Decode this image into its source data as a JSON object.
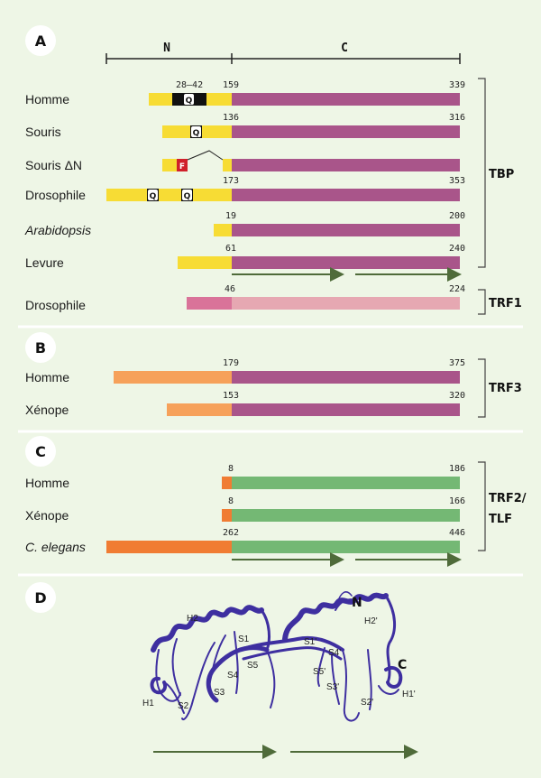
{
  "colors": {
    "yellow": "#f7dc34",
    "purple": "#a9558a",
    "pink": "#d97399",
    "lightpink": "#e6a8b2",
    "orange_light": "#f6a15a",
    "orange": "#f07c33",
    "green": "#74b874",
    "arrow": "#4f6b3a",
    "ribbon": "#3e2fa0"
  },
  "panelA": {
    "letter": "A",
    "n_label": "N",
    "c_label": "C",
    "rows": [
      {
        "name": "Homme",
        "start": "159",
        "end": "339",
        "motif": "28–42"
      },
      {
        "name": "Souris",
        "start": "136",
        "end": "316"
      },
      {
        "name": "Souris ΔN",
        "start": "",
        "end": "",
        "flag": "F"
      },
      {
        "name": "Drosophile",
        "start": "173",
        "end": "353"
      },
      {
        "name": "Arabidopsis",
        "start": "19",
        "end": "200"
      },
      {
        "name": "Levure",
        "start": "61",
        "end": "240"
      }
    ],
    "group": "TBP",
    "trf1_row": {
      "name": "Drosophile",
      "start": "46",
      "end": "224"
    },
    "trf1_group": "TRF1",
    "q_glyph": "Q"
  },
  "panelB": {
    "letter": "B",
    "rows": [
      {
        "name": "Homme",
        "start": "179",
        "end": "375"
      },
      {
        "name": "Xénope",
        "start": "153",
        "end": "320"
      }
    ],
    "group": "TRF3"
  },
  "panelC": {
    "letter": "C",
    "rows": [
      {
        "name": "Homme",
        "start": "8",
        "end": "186"
      },
      {
        "name": "Xénope",
        "start": "8",
        "end": "166"
      },
      {
        "name": "C. elegans",
        "start": "262",
        "end": "446"
      }
    ],
    "group_line1": "TRF2/",
    "group_line2": "TLF"
  },
  "panelD": {
    "letter": "D",
    "labels": {
      "n": "N",
      "c": "C",
      "h1": "H1",
      "h2": "H2",
      "s1": "S1",
      "s2": "S2",
      "s3": "S3",
      "s4": "S4",
      "s5": "S5",
      "h1p": "H1'",
      "h2p": "H2'",
      "s1p": "S1'",
      "s2p": "S2'",
      "s3p": "S3'",
      "s4p": "S4'",
      "s5p": "S5'"
    }
  }
}
